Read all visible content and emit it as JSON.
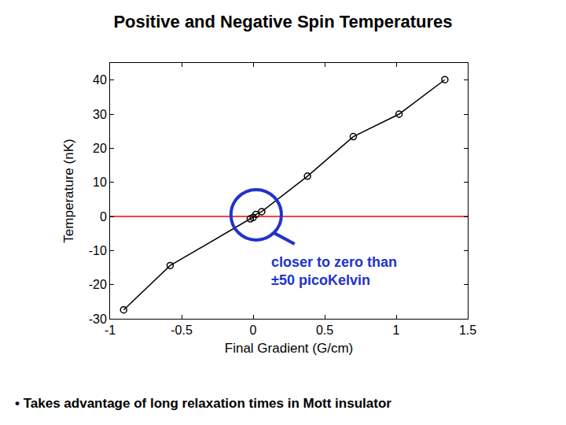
{
  "chart_data": {
    "type": "line",
    "title": "Positive and Negative Spin Temperatures",
    "x_label": "Final Gradient (G/cm)",
    "y_label": "Temperature (nK)",
    "x": [
      -0.905,
      -0.58,
      -0.02,
      0.0,
      0.02,
      0.06,
      0.38,
      0.7,
      1.02,
      1.34
    ],
    "values": [
      -27.4,
      -14.4,
      -0.7,
      -0.3,
      0.6,
      1.4,
      11.8,
      23.4,
      30.0,
      40.1
    ],
    "color": "#000000",
    "marker": "open_circle",
    "line_style": "solid",
    "xlim": [
      -1,
      1.5
    ],
    "xticks": [
      -1,
      -0.5,
      0,
      0.5,
      1,
      1.5
    ],
    "ylim": [
      -30,
      45
    ],
    "yticks": [
      -30,
      -20,
      -10,
      0,
      10,
      20,
      30,
      40
    ],
    "grid": false,
    "reference_line": {
      "y": 0,
      "color": "#ff0000"
    },
    "annotation": {
      "lines": [
        "closer to zero than",
        "±50 picoKelvin"
      ],
      "color": "#2233cc"
    },
    "footnote": "• Takes advantage of long relaxation times in Mott insulator"
  }
}
